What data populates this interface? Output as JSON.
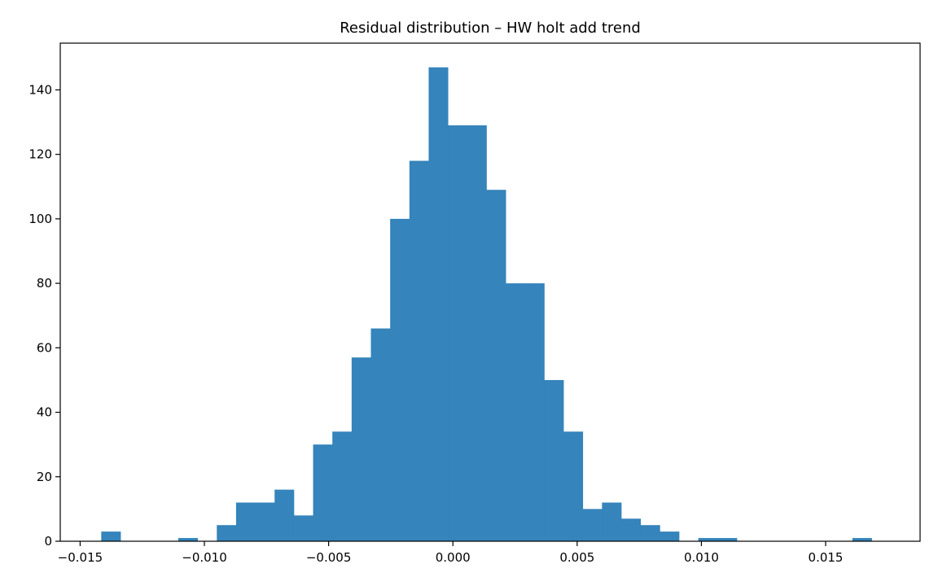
{
  "chart_data": {
    "type": "bar",
    "subtype": "histogram",
    "title": "Residual distribution – HW holt add trend",
    "xlabel": "",
    "ylabel": "",
    "bar_color": "#3584bb",
    "grid": false,
    "xlim": [
      -0.0158,
      0.0188
    ],
    "ylim": [
      0,
      154.5
    ],
    "x_ticks": [
      {
        "value": -0.015,
        "label": "−0.015"
      },
      {
        "value": -0.01,
        "label": "−0.010"
      },
      {
        "value": -0.005,
        "label": "−0.005"
      },
      {
        "value": 0.0,
        "label": "0.000"
      },
      {
        "value": 0.005,
        "label": "0.005"
      },
      {
        "value": 0.01,
        "label": "0.010"
      },
      {
        "value": 0.015,
        "label": "0.015"
      }
    ],
    "y_ticks": [
      {
        "value": 0,
        "label": "0"
      },
      {
        "value": 20,
        "label": "20"
      },
      {
        "value": 40,
        "label": "40"
      },
      {
        "value": 60,
        "label": "60"
      },
      {
        "value": 80,
        "label": "80"
      },
      {
        "value": 100,
        "label": "100"
      },
      {
        "value": 120,
        "label": "120"
      },
      {
        "value": 140,
        "label": "140"
      }
    ],
    "bin_start": -0.01415,
    "bin_width": 0.000775,
    "counts": [
      3,
      0,
      0,
      0,
      1,
      0,
      5,
      12,
      12,
      16,
      8,
      30,
      34,
      57,
      66,
      100,
      118,
      147,
      129,
      129,
      109,
      80,
      80,
      50,
      34,
      10,
      12,
      7,
      5,
      3,
      0,
      1,
      1,
      0,
      0,
      0,
      0,
      0,
      0,
      1
    ]
  }
}
